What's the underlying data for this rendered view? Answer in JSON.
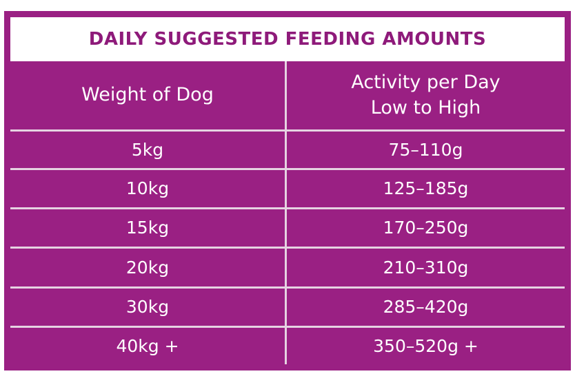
{
  "table": {
    "title": "DAILY SUGGESTED FEEDING AMOUNTS",
    "headers": {
      "weight": "Weight of Dog",
      "activity_line1": "Activity per Day",
      "activity_line2": "Low to High"
    },
    "rows": [
      {
        "weight": "5kg",
        "amount": "75–110g"
      },
      {
        "weight": "10kg",
        "amount": "125–185g"
      },
      {
        "weight": "15kg",
        "amount": "170–250g"
      },
      {
        "weight": "20kg",
        "amount": "210–310g"
      },
      {
        "weight": "30kg",
        "amount": "285–420g"
      },
      {
        "weight": "40kg +",
        "amount": "350–520g +"
      }
    ]
  },
  "colors": {
    "frame": "#9a2083",
    "title_text": "#8e1a7a",
    "cell_text": "#ffffff",
    "divider": "#e6d3e2"
  }
}
